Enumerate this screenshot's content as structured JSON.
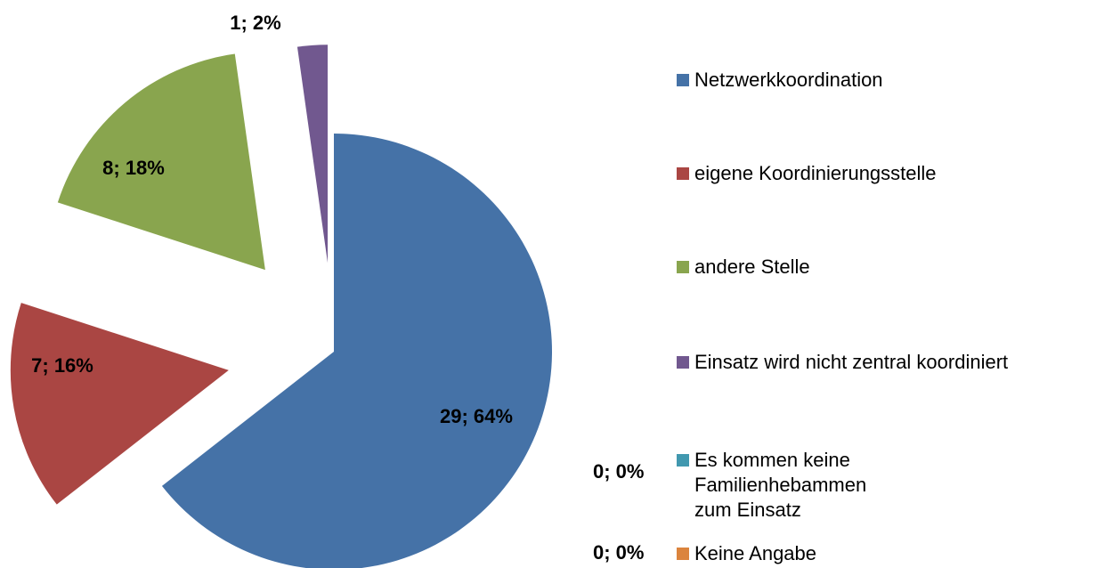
{
  "chart_data": {
    "type": "pie",
    "categories": [
      "Netzwerkkoordination",
      "eigene Koordinierungsstelle",
      "andere Stelle",
      "Einsatz wird nicht zentral koordiniert",
      "Es kommen keine Familienhebammen zum Einsatz",
      "Keine Angabe"
    ],
    "values": [
      29,
      7,
      8,
      1,
      0,
      0
    ],
    "value_labels": [
      "29; 64%",
      "7; 16%",
      "8; 18%",
      "1; 2%",
      "0; 0%",
      "0; 0%"
    ],
    "colors": [
      "#4572a7",
      "#aa4643",
      "#89a54e",
      "#71588f",
      "#4198af",
      "#db843d"
    ],
    "legend": "right"
  }
}
